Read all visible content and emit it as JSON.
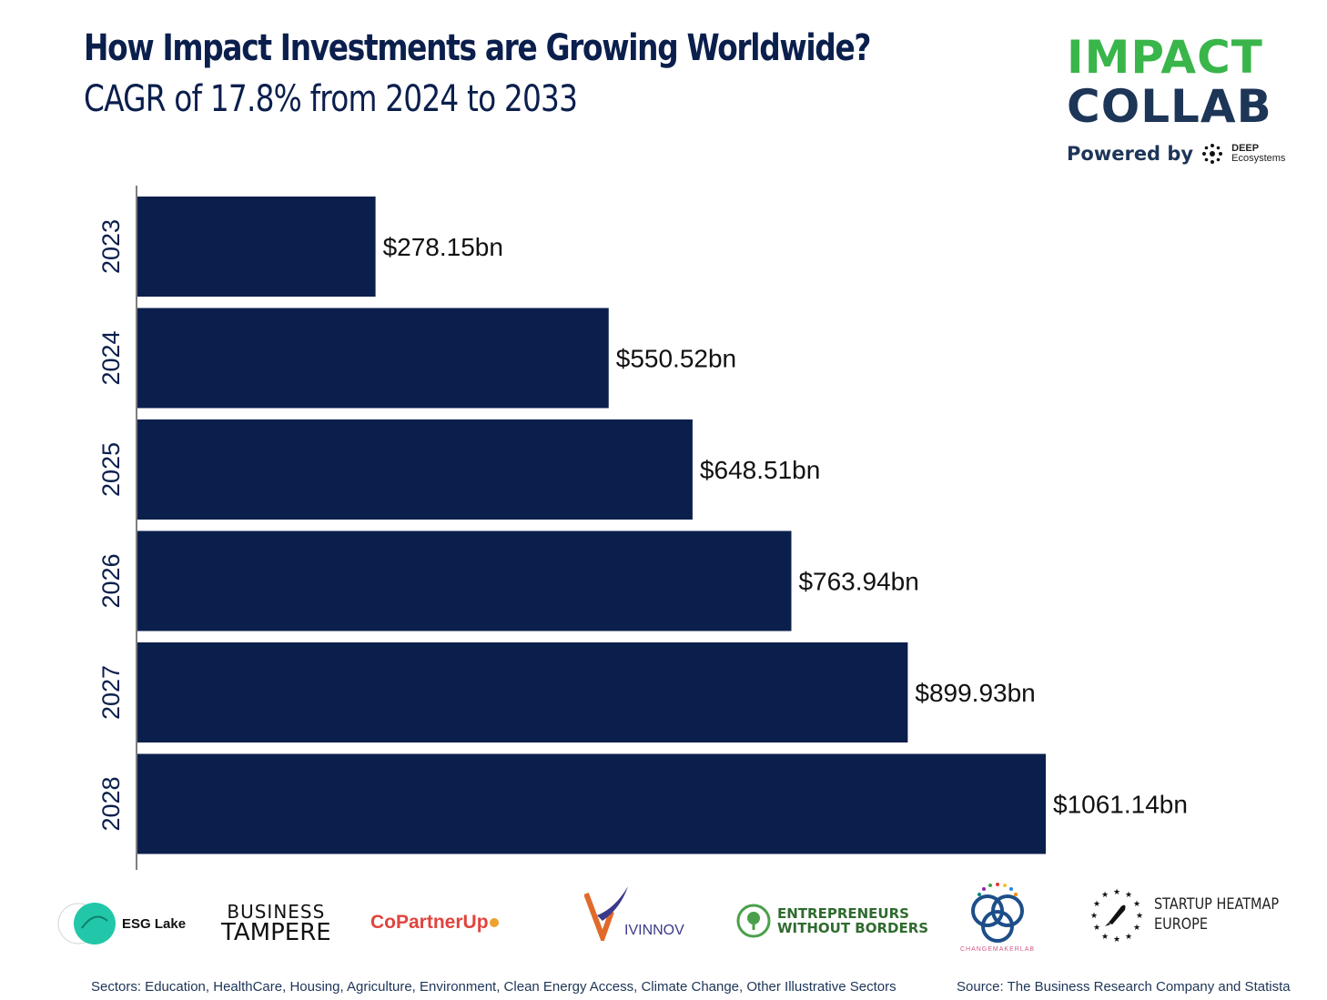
{
  "header": {
    "title": "How Impact Investments are Growing Worldwide?",
    "subtitle": "CAGR of 17.8% from 2024 to 2033"
  },
  "brand": {
    "line1": "IMPACT",
    "line2": "COLLAB",
    "powered_by": "Powered by",
    "deep_line1": "DEEP",
    "deep_line2": "Ecosystems"
  },
  "chart_data": {
    "type": "bar",
    "orientation": "horizontal",
    "categories": [
      "2023",
      "2024",
      "2025",
      "2026",
      "2027",
      "2028"
    ],
    "values": [
      278.15,
      550.52,
      648.51,
      763.94,
      899.93,
      1061.14
    ],
    "labels": [
      "$278.15bn",
      "$550.52bn",
      "$648.51bn",
      "$763.94bn",
      "$899.93bn",
      "$1061.14bn"
    ],
    "bar_color": "#0b1f4d",
    "grid": false,
    "xlim": [
      0,
      1061.14
    ]
  },
  "partners": {
    "esg_lake": "ESG Lake",
    "business_tampere_1": "BUSINESS",
    "business_tampere_2": "TAMPERE",
    "copartnerup": "CoPartnerUp",
    "vivinnov": "IVINNOV",
    "ewb_1": "ENTREPRENEURS",
    "ewb_2": "WITHOUT BORDERS",
    "changemakerlab": "CHANGEMAKERLAB",
    "startup_heatmap_1": "STARTUP HEATMAP",
    "startup_heatmap_2": "EUROPE"
  },
  "footer": {
    "sectors": "Sectors: Education, HealthCare, Housing, Agriculture, Environment, Clean Energy Access, Climate Change, Other Illustrative Sectors",
    "source": "Source: The Business Research Company and Statista"
  }
}
